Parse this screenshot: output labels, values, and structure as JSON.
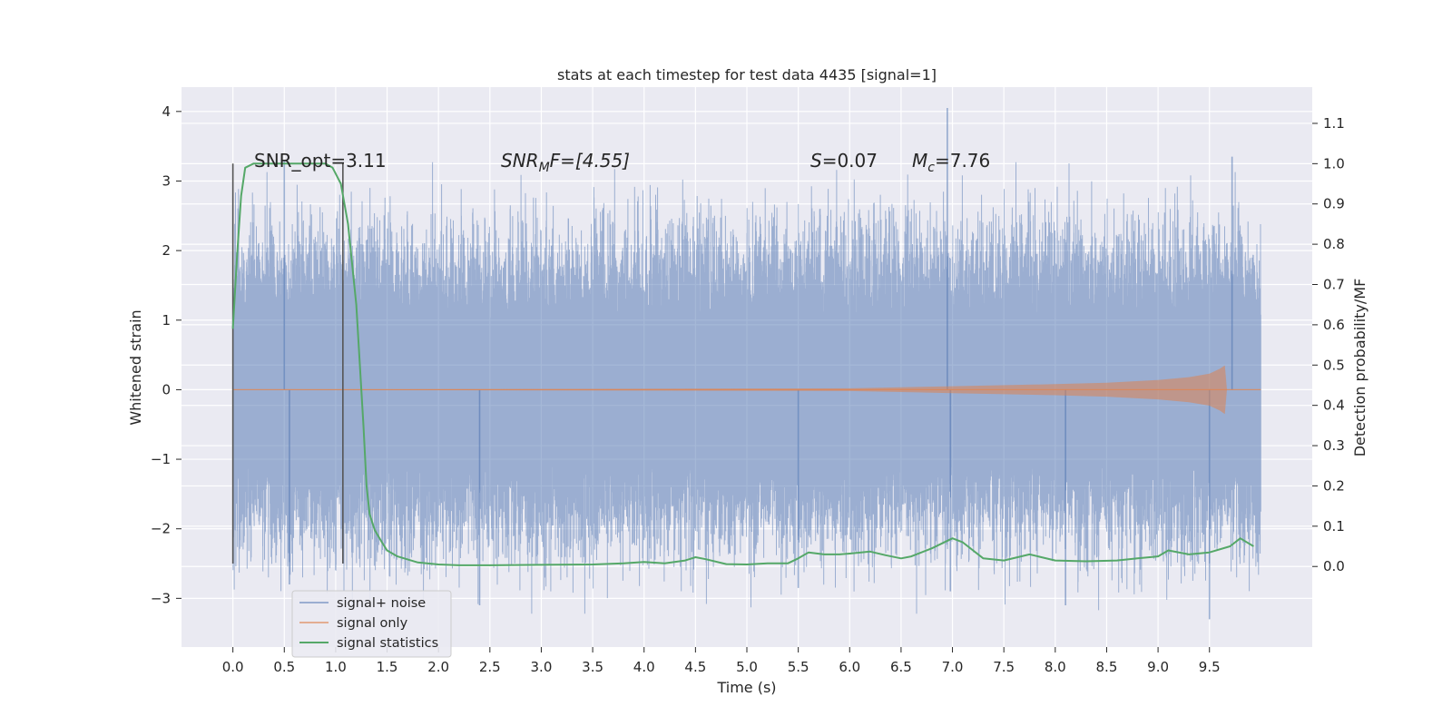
{
  "chart_data": {
    "type": "line",
    "title": "stats at each timestep for test data 4435 [signal=1]",
    "xlabel": "Time (s)",
    "ylabel": "Whitened strain",
    "ylabel_right": "Detection probability/MF",
    "xlim": [
      -0.5,
      10.5
    ],
    "ylim": [
      -3.7,
      4.35
    ],
    "ylim_right": [
      -0.2,
      1.19
    ],
    "x_ticks": [
      "0.0",
      "0.5",
      "1.0",
      "1.5",
      "2.0",
      "2.5",
      "3.0",
      "3.5",
      "4.0",
      "4.5",
      "5.0",
      "5.5",
      "6.0",
      "6.5",
      "7.0",
      "7.5",
      "8.0",
      "8.5",
      "9.0",
      "9.5"
    ],
    "y_ticks": [
      "−3",
      "−2",
      "−1",
      "0",
      "1",
      "2",
      "3",
      "4"
    ],
    "y_right_ticks": [
      "0.0",
      "0.1",
      "0.2",
      "0.3",
      "0.4",
      "0.5",
      "0.6",
      "0.7",
      "0.8",
      "0.9",
      "1.0",
      "1.1"
    ],
    "grid": true,
    "legend_placement": "lower-left",
    "colors": {
      "background": "#eaeaf2",
      "grid": "#ffffff",
      "noise": "#4c72b0",
      "signal": "#dd8452",
      "stats": "#55a868",
      "marker": "#555555"
    },
    "annotations": {
      "snr_opt": "SNR_opt=3.11",
      "snr_mf_label": "SNR",
      "snr_mf_sub": "M",
      "snr_mf_value": "F=[4.55]",
      "s_label": "S",
      "s_value": "=0.07",
      "mc_label": "M",
      "mc_sub": "c",
      "mc_value": "=7.76"
    },
    "vertical_markers": {
      "x": [
        0.0,
        1.07
      ],
      "y_range": [
        -2.5,
        3.25
      ]
    },
    "series": [
      {
        "name": "signal+ noise",
        "description_value": "whitened strain noise, range ≈ -3.3 to 4.05, envelope ≈ ±2.3",
        "envelope": [
          {
            "x": 0.0,
            "y": 1.8
          },
          {
            "x": 0.5,
            "y": 3.3
          },
          {
            "x": 1.0,
            "y": 2.0
          },
          {
            "x": 2.0,
            "y": 2.9
          },
          {
            "x": 3.0,
            "y": 2.6
          },
          {
            "x": 4.0,
            "y": 2.7
          },
          {
            "x": 5.0,
            "y": 2.5
          },
          {
            "x": 6.0,
            "y": 2.9
          },
          {
            "x": 7.0,
            "y": 4.05
          },
          {
            "x": 8.0,
            "y": 2.6
          },
          {
            "x": 9.0,
            "y": 2.6
          },
          {
            "x": 9.7,
            "y": 3.35
          },
          {
            "x": 10.0,
            "y": 2.2
          }
        ],
        "outliers": [
          {
            "x": 0.5,
            "y": 3.3
          },
          {
            "x": 0.55,
            "y": -2.8
          },
          {
            "x": 2.4,
            "y": -3.1
          },
          {
            "x": 5.5,
            "y": -2.85
          },
          {
            "x": 6.95,
            "y": 4.05
          },
          {
            "x": 6.98,
            "y": -2.9
          },
          {
            "x": 8.1,
            "y": -3.1
          },
          {
            "x": 9.5,
            "y": -3.3
          },
          {
            "x": 9.72,
            "y": 3.35
          }
        ]
      },
      {
        "name": "signal only",
        "description_value": "chirp signal growing in amplitude until ≈ 9.65 s",
        "x": [
          0,
          6.0,
          7.0,
          8.0,
          8.5,
          9.0,
          9.3,
          9.5,
          9.6,
          9.65,
          9.67
        ],
        "amplitude": [
          0.0,
          0.02,
          0.05,
          0.08,
          0.1,
          0.14,
          0.18,
          0.23,
          0.3,
          0.35,
          0.0
        ]
      },
      {
        "name": "signal statistics",
        "x": [
          0.0,
          0.04,
          0.08,
          0.12,
          0.2,
          0.3,
          0.5,
          0.7,
          0.9,
          0.97,
          1.05,
          1.12,
          1.2,
          1.27,
          1.3,
          1.33,
          1.38,
          1.45,
          1.5,
          1.6,
          1.8,
          2.0,
          2.2,
          2.5,
          3.0,
          3.5,
          3.8,
          4.0,
          4.2,
          4.4,
          4.5,
          4.6,
          4.8,
          5.0,
          5.2,
          5.4,
          5.5,
          5.6,
          5.75,
          5.9,
          6.0,
          6.2,
          6.35,
          6.5,
          6.6,
          6.8,
          7.0,
          7.1,
          7.3,
          7.5,
          7.75,
          8.0,
          8.3,
          8.6,
          8.8,
          9.0,
          9.1,
          9.3,
          9.5,
          9.7,
          9.8,
          9.93
        ],
        "values": [
          0.59,
          0.77,
          0.92,
          0.99,
          1.0,
          1.0,
          1.0,
          1.0,
          1.0,
          0.99,
          0.95,
          0.85,
          0.65,
          0.35,
          0.2,
          0.13,
          0.09,
          0.06,
          0.04,
          0.025,
          0.01,
          0.005,
          0.003,
          0.003,
          0.004,
          0.005,
          0.008,
          0.011,
          0.008,
          0.015,
          0.023,
          0.018,
          0.006,
          0.005,
          0.008,
          0.008,
          0.02,
          0.035,
          0.03,
          0.03,
          0.032,
          0.037,
          0.028,
          0.02,
          0.025,
          0.045,
          0.07,
          0.06,
          0.02,
          0.015,
          0.03,
          0.015,
          0.013,
          0.015,
          0.02,
          0.025,
          0.04,
          0.03,
          0.035,
          0.05,
          0.07,
          0.05
        ]
      }
    ]
  }
}
